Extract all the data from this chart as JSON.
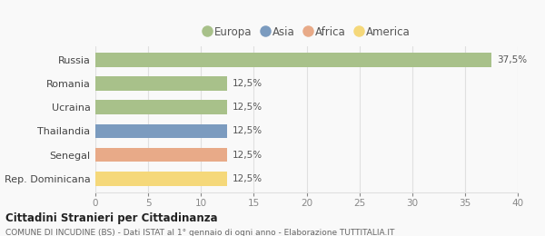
{
  "categories": [
    "Russia",
    "Romania",
    "Ucraina",
    "Thailandia",
    "Senegal",
    "Rep. Dominicana"
  ],
  "values": [
    37.5,
    12.5,
    12.5,
    12.5,
    12.5,
    12.5
  ],
  "bar_colors": [
    "#a8c18a",
    "#a8c18a",
    "#a8c18a",
    "#7b9bbf",
    "#e8aa88",
    "#f5d87a"
  ],
  "bar_labels": [
    "37,5%",
    "12,5%",
    "12,5%",
    "12,5%",
    "12,5%",
    "12,5%"
  ],
  "legend_labels": [
    "Europa",
    "Asia",
    "Africa",
    "America"
  ],
  "legend_colors": [
    "#a8c18a",
    "#7b9bbf",
    "#e8aa88",
    "#f5d87a"
  ],
  "title": "Cittadini Stranieri per Cittadinanza",
  "subtitle": "COMUNE DI INCUDINE (BS) - Dati ISTAT al 1° gennaio di ogni anno - Elaborazione TUTTITALIA.IT",
  "xlim": [
    0,
    40
  ],
  "xticks": [
    0,
    5,
    10,
    15,
    20,
    25,
    30,
    35,
    40
  ],
  "background_color": "#f9f9f9",
  "grid_color": "#e0e0e0",
  "bar_height": 0.6
}
